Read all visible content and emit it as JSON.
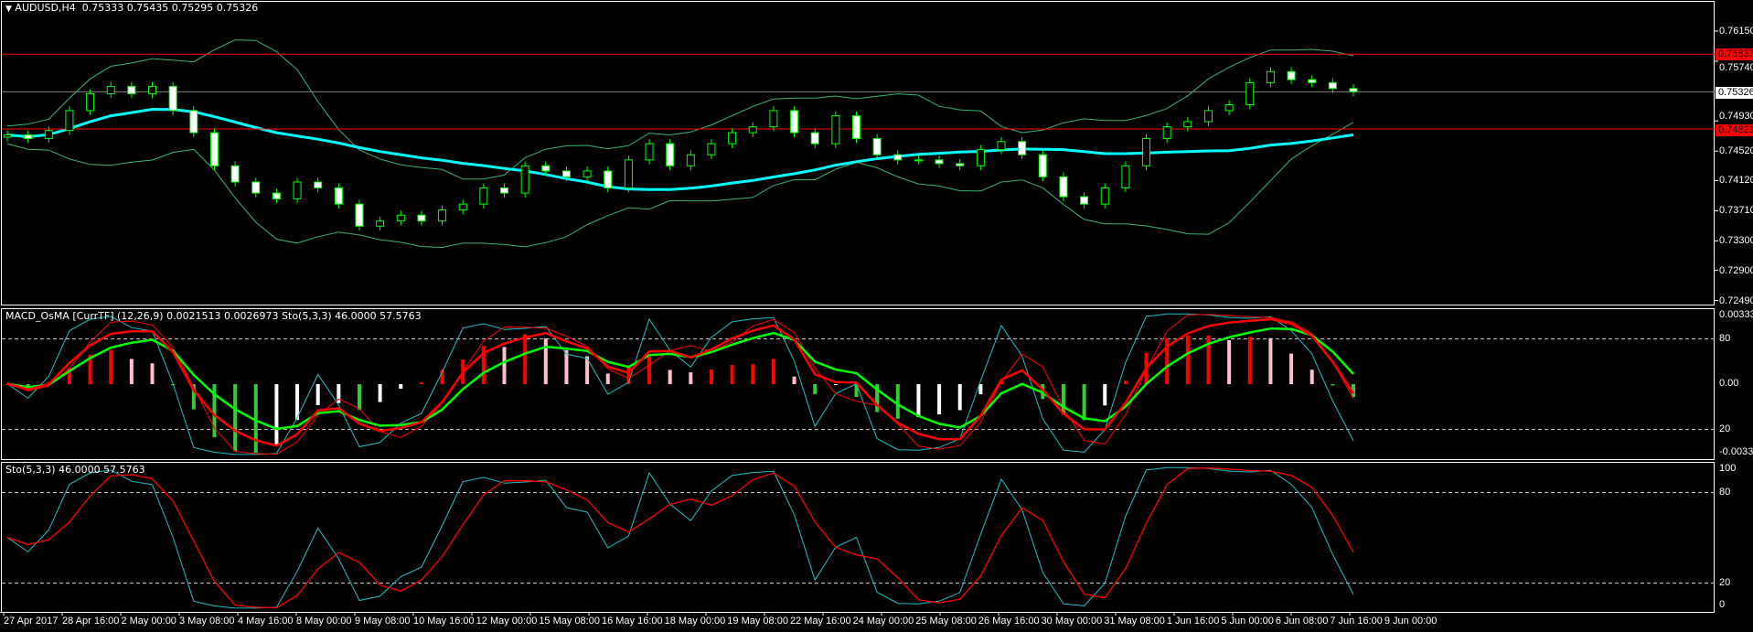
{
  "header": {
    "symbol": "AUDUSD,H4",
    "ohlc": "0.75333 0.75435 0.75295 0.75326"
  },
  "subwindow1": {
    "title": "MACD_OsMA [CurrTF] (12,26,9) 0.0021513 0.0026973  Sto(5,3,3) 46.0000 57.5763",
    "axis": [
      "0.003333",
      "80",
      "0.00",
      "20",
      "-0.003362"
    ]
  },
  "subwindow2": {
    "title": "Sto(5,3,3) 46.0000 57.5763",
    "axis": [
      "100",
      "80",
      "20",
      "0"
    ]
  },
  "price_axis": [
    "0.76150",
    "0.75740",
    "0.74930",
    "0.74520",
    "0.74120",
    "0.73710",
    "0.73300",
    "0.72900",
    "0.72490"
  ],
  "price_tags": {
    "resistance": "0.75837",
    "current": "0.75326",
    "support": "0.74821"
  },
  "colors": {
    "bull_outline": "#00ff00",
    "bear_fill": "#ffffff",
    "bands": "#3cb371",
    "ma": "#00ffff",
    "level": "#ff0000",
    "bid": "#808080",
    "stoch_main": "#20c0c0",
    "stoch_signal": "#ff0000"
  },
  "chart_data": {
    "type": "candlestick",
    "symbol": "AUDUSD",
    "timeframe": "H4",
    "ylim": [
      0.7249,
      0.7656
    ],
    "horizontal_levels": [
      0.75837,
      0.75326,
      0.74821
    ],
    "x_tick_labels": [
      "27 Apr 2017",
      "28 Apr 16:00",
      "2 May 00:00",
      "3 May 08:00",
      "4 May 16:00",
      "8 May 00:00",
      "9 May 08:00",
      "10 May 16:00",
      "12 May 00:00",
      "15 May 08:00",
      "16 May 16:00",
      "18 May 00:00",
      "19 May 08:00",
      "22 May 16:00",
      "24 May 00:00",
      "25 May 08:00",
      "26 May 16:00",
      "30 May 00:00",
      "31 May 08:00",
      "1 Jun 16:00",
      "5 Jun 00:00",
      "6 Jun 08:00",
      "7 Jun 16:00",
      "9 Jun 00:00"
    ],
    "close": [
      0.7474,
      0.7469,
      0.748,
      0.7507,
      0.753,
      0.754,
      0.753,
      0.754,
      0.7507,
      0.7477,
      0.7432,
      0.741,
      0.7395,
      0.7387,
      0.741,
      0.7402,
      0.738,
      0.735,
      0.7357,
      0.7365,
      0.7357,
      0.7372,
      0.738,
      0.7402,
      0.7395,
      0.7432,
      0.7425,
      0.7417,
      0.7425,
      0.7402,
      0.744,
      0.7462,
      0.7432,
      0.7447,
      0.7462,
      0.7477,
      0.7485,
      0.7507,
      0.7477,
      0.7462,
      0.75,
      0.7469,
      0.7447,
      0.744,
      0.744,
      0.7435,
      0.7432,
      0.7454,
      0.7465,
      0.7447,
      0.7417,
      0.739,
      0.738,
      0.7402,
      0.7432,
      0.7469,
      0.7485,
      0.7492,
      0.7507,
      0.7515,
      0.7545,
      0.756,
      0.7549,
      0.7545,
      0.7537,
      0.75326
    ]
  }
}
